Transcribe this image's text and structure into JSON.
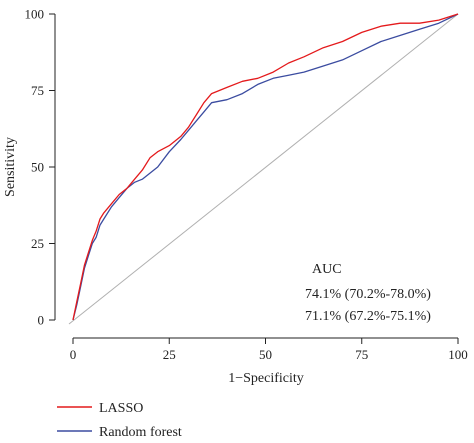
{
  "chart_data": {
    "type": "line",
    "title": "",
    "xlabel": "1−Specificity",
    "ylabel": "Sensitivity",
    "xlim": [
      0,
      100
    ],
    "ylim": [
      0,
      100
    ],
    "xticks": [
      "0",
      "25",
      "50",
      "75",
      "100"
    ],
    "yticks": [
      "0",
      "25",
      "50",
      "75",
      "100"
    ],
    "grid": false,
    "legend_position": "bottom-left",
    "auc": {
      "heading": "AUC",
      "lines": [
        "74.1% (70.2%-78.0%)",
        "71.1% (67.2%-75.1%)"
      ]
    },
    "reference_line": {
      "color": "#b0b0b0",
      "points": [
        [
          0,
          0
        ],
        [
          100,
          100
        ]
      ]
    },
    "series": [
      {
        "name": "LASSO",
        "color": "#e41a1c",
        "points": [
          [
            0,
            0
          ],
          [
            1,
            6
          ],
          [
            2,
            12
          ],
          [
            3,
            18
          ],
          [
            4,
            22
          ],
          [
            5,
            26
          ],
          [
            6,
            29
          ],
          [
            7,
            33
          ],
          [
            8,
            35
          ],
          [
            10,
            38
          ],
          [
            12,
            41
          ],
          [
            14,
            43
          ],
          [
            16,
            46
          ],
          [
            18,
            49
          ],
          [
            20,
            53
          ],
          [
            22,
            55
          ],
          [
            25,
            57
          ],
          [
            28,
            60
          ],
          [
            30,
            63
          ],
          [
            32,
            67
          ],
          [
            34,
            71
          ],
          [
            36,
            74
          ],
          [
            40,
            76
          ],
          [
            44,
            78
          ],
          [
            48,
            79
          ],
          [
            52,
            81
          ],
          [
            56,
            84
          ],
          [
            60,
            86
          ],
          [
            65,
            89
          ],
          [
            70,
            91
          ],
          [
            75,
            94
          ],
          [
            80,
            96
          ],
          [
            85,
            97
          ],
          [
            90,
            97
          ],
          [
            95,
            98
          ],
          [
            100,
            100
          ]
        ]
      },
      {
        "name": "Random forest",
        "color": "#3b4ca0",
        "points": [
          [
            0,
            0
          ],
          [
            1,
            5
          ],
          [
            2,
            11
          ],
          [
            3,
            17
          ],
          [
            4,
            21
          ],
          [
            5,
            25
          ],
          [
            6,
            27
          ],
          [
            7,
            31
          ],
          [
            8,
            33
          ],
          [
            10,
            37
          ],
          [
            12,
            40
          ],
          [
            14,
            43
          ],
          [
            16,
            45
          ],
          [
            18,
            46
          ],
          [
            20,
            48
          ],
          [
            22,
            50
          ],
          [
            25,
            55
          ],
          [
            28,
            59
          ],
          [
            30,
            62
          ],
          [
            32,
            65
          ],
          [
            34,
            68
          ],
          [
            36,
            71
          ],
          [
            40,
            72
          ],
          [
            44,
            74
          ],
          [
            48,
            77
          ],
          [
            52,
            79
          ],
          [
            56,
            80
          ],
          [
            60,
            81
          ],
          [
            65,
            83
          ],
          [
            70,
            85
          ],
          [
            75,
            88
          ],
          [
            80,
            91
          ],
          [
            85,
            93
          ],
          [
            90,
            95
          ],
          [
            95,
            97
          ],
          [
            100,
            100
          ]
        ]
      }
    ]
  }
}
